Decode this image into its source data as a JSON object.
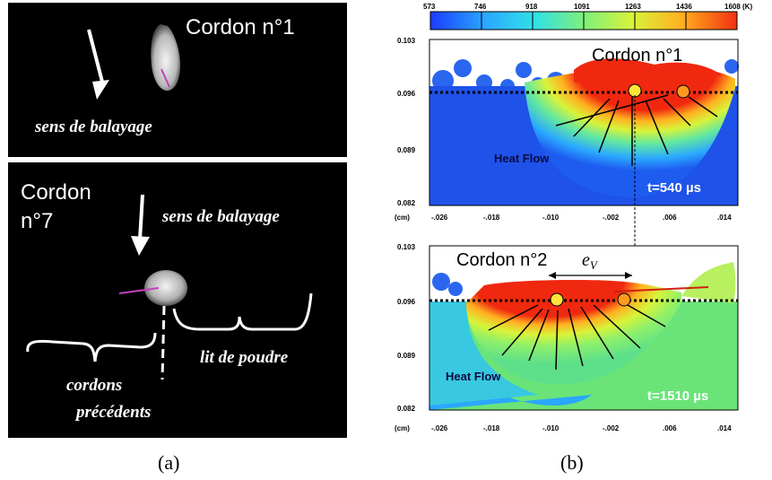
{
  "panel_a": {
    "top": {
      "title": "Cordon n°1",
      "scan_label": "sens de balayage"
    },
    "bottom": {
      "title_line1": "Cordon",
      "title_line2": "n°7",
      "scan_label": "sens de balayage",
      "powder_label": "lit de poudre",
      "previous_line1": "cordons",
      "previous_line2": "précédents"
    },
    "caption": "(a)"
  },
  "panel_b": {
    "colorbar": {
      "ticks": [
        "573",
        "746",
        "918",
        "1091",
        "1263",
        "1436",
        "1608 (K)"
      ],
      "colors": [
        "#1a3cff",
        "#2aa8ff",
        "#31e0e8",
        "#7ef07a",
        "#d8f33a",
        "#ffb020",
        "#f23010"
      ]
    },
    "top": {
      "title": "Cordon n°1",
      "heat_flow": "Heat Flow",
      "time": "t=540 µs",
      "y_ticks": [
        "0.103",
        "0.096",
        "0.089",
        "0.082"
      ],
      "y_unit": "(cm)",
      "x_ticks": [
        "-.026",
        "-.018",
        "-.010",
        "-.002",
        ".006",
        ".014"
      ]
    },
    "bottom": {
      "title": "Cordon n°2",
      "ev_label": "e",
      "ev_sub": "V",
      "heat_flow": "Heat Flow",
      "time": "t=1510 µs",
      "y_ticks": [
        "0.103",
        "0.096",
        "0.089",
        "0.082"
      ],
      "y_unit": "(cm)",
      "x_ticks": [
        "-.026",
        "-.018",
        "-.010",
        "-.002",
        ".006",
        ".014"
      ]
    },
    "caption": "(b)"
  }
}
